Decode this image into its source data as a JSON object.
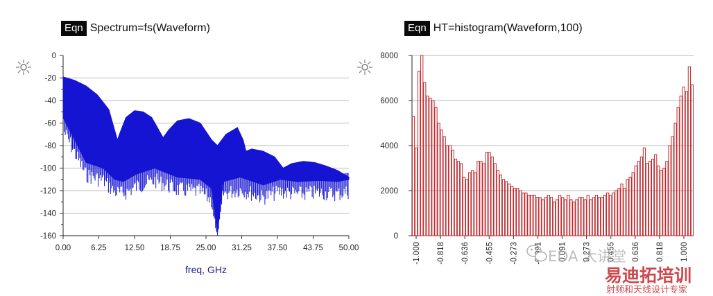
{
  "left_panel": {
    "badge": "Eqn",
    "equation": "Spectrum=fs(Waveform)"
  },
  "right_panel": {
    "badge": "Eqn",
    "equation": "HT=histogram(Waveform,100)"
  },
  "watermark": {
    "line1": "EDA 大讲堂",
    "line2": "易迪拓培训",
    "line3": "射频和天线设计专家"
  },
  "colors": {
    "spectrum": "#1414d2",
    "histogram": "#c0282c",
    "grid": "#b8b8b8",
    "xlabel": "#1a1a8c"
  },
  "chart_data": [
    {
      "type": "area",
      "title": "Spectrum=fs(Waveform)",
      "xlabel": "freq, GHz",
      "ylabel": "",
      "xlim": [
        0,
        50
      ],
      "ylim": [
        -160,
        0
      ],
      "xticks": [
        "0.00",
        "6.25",
        "12.50",
        "18.75",
        "25.00",
        "31.25",
        "37.50",
        "43.75",
        "50.00"
      ],
      "yticks": [
        "0",
        "-20",
        "-40",
        "-60",
        "-80",
        "-100",
        "-120",
        "-140",
        "-160"
      ],
      "grid": true,
      "series": [
        {
          "envelope_top": [
            [
              0,
              -19
            ],
            [
              2,
              -22
            ],
            [
              4,
              -27
            ],
            [
              6,
              -35
            ],
            [
              8,
              -48
            ],
            [
              9.5,
              -75
            ],
            [
              10,
              -68
            ],
            [
              11,
              -55
            ],
            [
              12.5,
              -49
            ],
            [
              14,
              -50
            ],
            [
              15.5,
              -55
            ],
            [
              17.5,
              -73
            ],
            [
              18.5,
              -66
            ],
            [
              20,
              -58
            ],
            [
              22,
              -56
            ],
            [
              24,
              -60
            ],
            [
              26,
              -75
            ],
            [
              27,
              -80
            ],
            [
              28.5,
              -70
            ],
            [
              30.5,
              -64
            ],
            [
              31.5,
              -75
            ],
            [
              32,
              -85
            ],
            [
              33,
              -83
            ],
            [
              35,
              -85
            ],
            [
              37,
              -90
            ],
            [
              38.5,
              -100
            ],
            [
              40,
              -96
            ],
            [
              42,
              -94
            ],
            [
              44,
              -95
            ],
            [
              46,
              -98
            ],
            [
              48,
              -102
            ],
            [
              50,
              -108
            ]
          ],
          "envelope_bottom": [
            [
              0,
              -55
            ],
            [
              2,
              -75
            ],
            [
              4,
              -95
            ],
            [
              7,
              -100
            ],
            [
              9,
              -110
            ],
            [
              10.5,
              -112
            ],
            [
              13,
              -105
            ],
            [
              16,
              -100
            ],
            [
              20,
              -108
            ],
            [
              24,
              -110
            ],
            [
              26,
              -118
            ],
            [
              27,
              -158
            ],
            [
              28,
              -112
            ],
            [
              31,
              -108
            ],
            [
              35,
              -115
            ],
            [
              38,
              -110
            ],
            [
              41,
              -112
            ],
            [
              45,
              -111
            ],
            [
              48,
              -112
            ],
            [
              50,
              -110
            ]
          ]
        }
      ]
    },
    {
      "type": "bar",
      "title": "HT=histogram(Waveform,100)",
      "xlabel": "",
      "ylabel": "",
      "xlim": [
        -1,
        1
      ],
      "ylim": [
        0,
        8000
      ],
      "xticks": [
        "-1.000",
        "-0.818",
        "-0.636",
        "-0.455",
        "-0.273",
        "-0.091",
        "0.091",
        "0.273",
        "0.455",
        "0.636",
        "0.818",
        "1.000"
      ],
      "yticks": [
        "0",
        "2000",
        "4000",
        "6000",
        "8000"
      ],
      "grid": true,
      "bins": 100,
      "values": [
        5300,
        3900,
        7300,
        8000,
        6800,
        6200,
        6100,
        6000,
        5700,
        5000,
        4700,
        4400,
        4000,
        4000,
        3800,
        3400,
        3300,
        3200,
        2600,
        2500,
        2800,
        2900,
        2800,
        3300,
        3300,
        3200,
        3700,
        3700,
        3500,
        3200,
        2900,
        2700,
        2500,
        2400,
        2300,
        2200,
        2100,
        2100,
        2000,
        1900,
        1900,
        1800,
        1800,
        1800,
        1700,
        1700,
        1600,
        1700,
        1800,
        1700,
        1500,
        1600,
        1800,
        1700,
        1600,
        1800,
        1600,
        1500,
        1600,
        1700,
        1700,
        1600,
        1800,
        1600,
        1700,
        1800,
        1700,
        1700,
        1800,
        1900,
        1800,
        1900,
        2000,
        2100,
        2300,
        2100,
        2500,
        2600,
        2800,
        3100,
        3300,
        3500,
        3900,
        3200,
        3300,
        3400,
        3600,
        3100,
        2900,
        3000,
        3300,
        4000,
        4400,
        5000,
        5700,
        6200,
        6600,
        6400,
        7500,
        6700
      ]
    }
  ]
}
